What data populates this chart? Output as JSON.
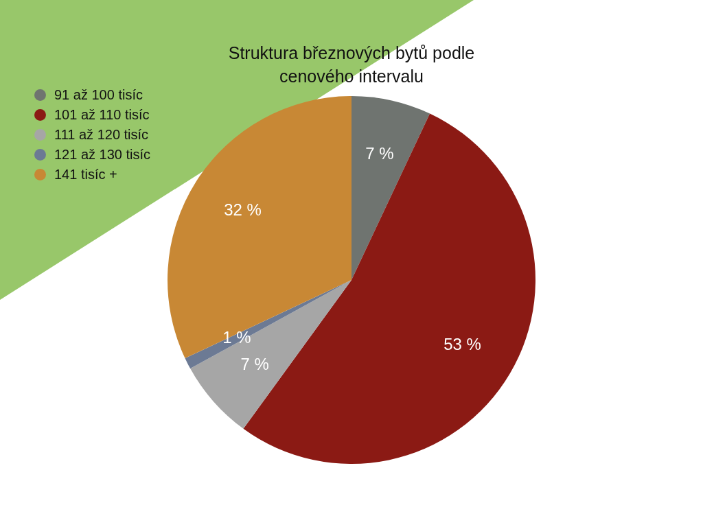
{
  "chart_data": {
    "type": "pie",
    "title": "Struktura březnových bytů podle cenového intervalu",
    "categories": [
      "91 až 100 tisíc",
      "101 až 110 tisíc",
      "111 až 120 tisíc",
      "121 až 130 tisíc",
      "141 tisíc +"
    ],
    "values": [
      7,
      53,
      7,
      1,
      32
    ],
    "colors": [
      "#6f7470",
      "#8b1a14",
      "#a6a6a6",
      "#6c7a94",
      "#c88835"
    ],
    "value_labels": [
      "7 %",
      "53 %",
      "7 %",
      "1 %",
      "32 %"
    ],
    "legend": "top left"
  }
}
